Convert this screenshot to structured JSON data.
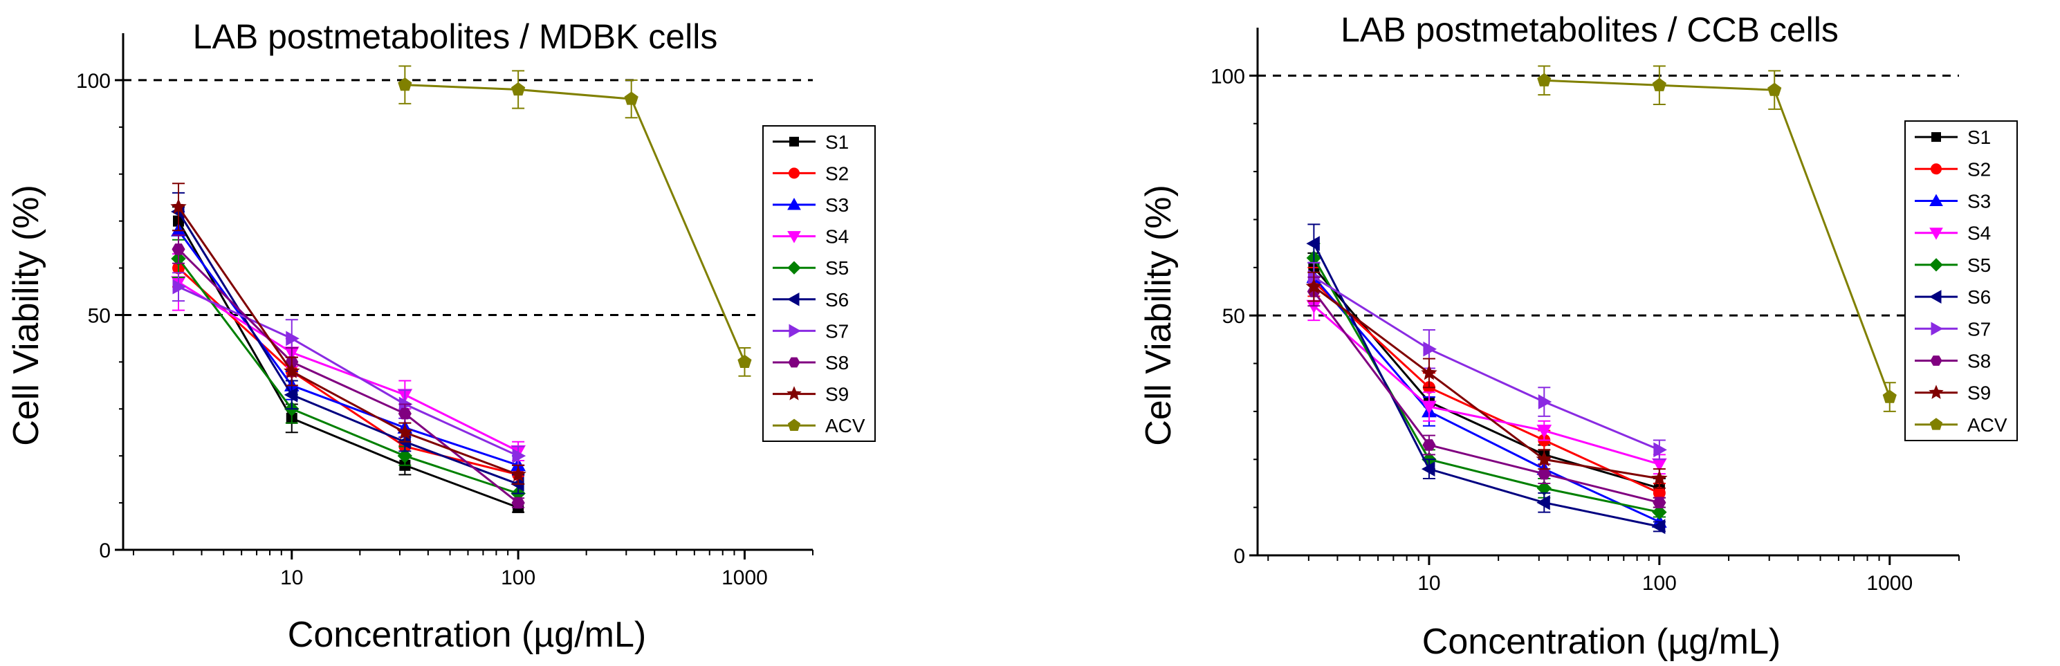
{
  "chart_data": [
    {
      "type": "line",
      "title": "LAB postmetabolites / MDBK cells",
      "xlabel": "Concentration (µg/mL)",
      "ylabel": "Cell Viability (%)",
      "xscale": "log",
      "xlim": [
        1.8,
        2000
      ],
      "ylim": [
        0,
        110
      ],
      "xticks": [
        10,
        100,
        1000
      ],
      "xtick_labels": [
        "10",
        "100",
        "1000"
      ],
      "yticks": [
        0,
        50,
        100
      ],
      "ytick_labels": [
        "0",
        "50",
        "100"
      ],
      "reference_lines": [
        50,
        100
      ],
      "legend_position": "right",
      "series": [
        {
          "name": "S1",
          "color": "#000000",
          "marker": "square",
          "x": [
            3.16,
            10,
            31.6,
            100
          ],
          "y": [
            70,
            28,
            18,
            9
          ],
          "err": [
            3,
            3,
            2,
            1
          ]
        },
        {
          "name": "S2",
          "color": "#ff0000",
          "marker": "circle",
          "x": [
            3.16,
            10,
            31.6,
            100
          ],
          "y": [
            60,
            38,
            22,
            16
          ],
          "err": [
            4,
            3,
            2,
            2
          ]
        },
        {
          "name": "S3",
          "color": "#0000ff",
          "marker": "triangle-up",
          "x": [
            3.16,
            10,
            31.6,
            100
          ],
          "y": [
            68,
            35,
            26,
            18
          ],
          "err": [
            4,
            3,
            2,
            2
          ]
        },
        {
          "name": "S4",
          "color": "#ff00ff",
          "marker": "triangle-down",
          "x": [
            3.16,
            10,
            31.6,
            100
          ],
          "y": [
            57,
            42,
            33,
            21
          ],
          "err": [
            6,
            3,
            3,
            2
          ]
        },
        {
          "name": "S5",
          "color": "#008000",
          "marker": "diamond",
          "x": [
            3.16,
            10,
            31.6,
            100
          ],
          "y": [
            62,
            30,
            20,
            12
          ],
          "err": [
            4,
            3,
            2,
            2
          ]
        },
        {
          "name": "S6",
          "color": "#000080",
          "marker": "triangle-left",
          "x": [
            3.16,
            10,
            31.6,
            100
          ],
          "y": [
            72,
            33,
            23,
            14
          ],
          "err": [
            4,
            3,
            2,
            2
          ]
        },
        {
          "name": "S7",
          "color": "#8a2be2",
          "marker": "triangle-right",
          "x": [
            3.16,
            10,
            31.6,
            100
          ],
          "y": [
            56,
            45,
            31,
            20
          ],
          "err": [
            3,
            4,
            3,
            2
          ]
        },
        {
          "name": "S8",
          "color": "#800080",
          "marker": "hexagon",
          "x": [
            3.16,
            10,
            31.6,
            100
          ],
          "y": [
            64,
            40,
            29,
            10
          ],
          "err": [
            3,
            3,
            2,
            1
          ]
        },
        {
          "name": "S9",
          "color": "#800000",
          "marker": "star",
          "x": [
            3.16,
            10,
            31.6,
            100
          ],
          "y": [
            73,
            38,
            25,
            16
          ],
          "err": [
            5,
            3,
            2,
            2
          ]
        },
        {
          "name": "ACV",
          "color": "#808000",
          "marker": "pentagon",
          "x": [
            31.6,
            100,
            316,
            1000
          ],
          "y": [
            99,
            98,
            96,
            40
          ],
          "err": [
            4,
            4,
            4,
            3
          ]
        }
      ]
    },
    {
      "type": "line",
      "title": "LAB postmetabolites / CCB cells",
      "xlabel": "Concentration (µg/mL)",
      "ylabel": "Cell Viability (%)",
      "xscale": "log",
      "xlim": [
        1.8,
        2000
      ],
      "ylim": [
        0,
        110
      ],
      "xticks": [
        10,
        100,
        1000
      ],
      "xtick_labels": [
        "10",
        "100",
        "1000"
      ],
      "yticks": [
        0,
        50,
        100
      ],
      "ytick_labels": [
        "0",
        "50",
        "100"
      ],
      "reference_lines": [
        50,
        100
      ],
      "legend_position": "right",
      "series": [
        {
          "name": "S1",
          "color": "#000000",
          "marker": "square",
          "x": [
            3.16,
            10,
            31.6,
            100
          ],
          "y": [
            60,
            32,
            21,
            14
          ],
          "err": [
            3,
            3,
            2,
            2
          ]
        },
        {
          "name": "S2",
          "color": "#ff0000",
          "marker": "circle",
          "x": [
            3.16,
            10,
            31.6,
            100
          ],
          "y": [
            57,
            35,
            24,
            13
          ],
          "err": [
            3,
            3,
            2,
            2
          ]
        },
        {
          "name": "S3",
          "color": "#0000ff",
          "marker": "triangle-up",
          "x": [
            3.16,
            10,
            31.6,
            100
          ],
          "y": [
            58,
            30,
            18,
            7
          ],
          "err": [
            3,
            3,
            2,
            1
          ]
        },
        {
          "name": "S4",
          "color": "#ff00ff",
          "marker": "triangle-down",
          "x": [
            3.16,
            10,
            31.6,
            100
          ],
          "y": [
            52,
            31,
            26,
            19
          ],
          "err": [
            3,
            3,
            2,
            2
          ]
        },
        {
          "name": "S5",
          "color": "#008000",
          "marker": "diamond",
          "x": [
            3.16,
            10,
            31.6,
            100
          ],
          "y": [
            62,
            20,
            14,
            9
          ],
          "err": [
            3,
            2,
            2,
            1
          ]
        },
        {
          "name": "S6",
          "color": "#000080",
          "marker": "triangle-left",
          "x": [
            3.16,
            10,
            31.6,
            100
          ],
          "y": [
            65,
            18,
            11,
            6
          ],
          "err": [
            4,
            2,
            2,
            1
          ]
        },
        {
          "name": "S7",
          "color": "#8a2be2",
          "marker": "triangle-right",
          "x": [
            3.16,
            10,
            31.6,
            100
          ],
          "y": [
            58,
            43,
            32,
            22
          ],
          "err": [
            3,
            4,
            3,
            2
          ]
        },
        {
          "name": "S8",
          "color": "#800080",
          "marker": "hexagon",
          "x": [
            3.16,
            10,
            31.6,
            100
          ],
          "y": [
            55,
            23,
            17,
            11
          ],
          "err": [
            3,
            2,
            2,
            1
          ]
        },
        {
          "name": "S9",
          "color": "#800000",
          "marker": "star",
          "x": [
            3.16,
            10,
            31.6,
            100
          ],
          "y": [
            56,
            38,
            20,
            16
          ],
          "err": [
            3,
            3,
            2,
            2
          ]
        },
        {
          "name": "ACV",
          "color": "#808000",
          "marker": "pentagon",
          "x": [
            31.6,
            100,
            316,
            1000
          ],
          "y": [
            99,
            98,
            97,
            33
          ],
          "err": [
            3,
            4,
            4,
            3
          ]
        }
      ]
    }
  ]
}
